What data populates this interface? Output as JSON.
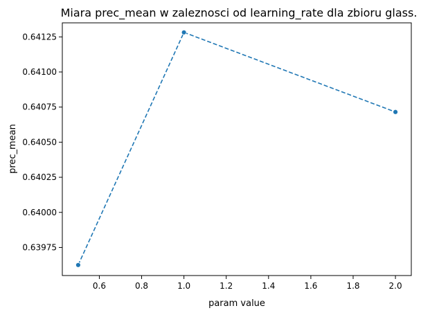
{
  "chart_data": {
    "type": "line",
    "title": "Miara prec_mean w zaleznosci od learning_rate dla zbioru glass.",
    "xlabel": "param value",
    "ylabel": "prec_mean",
    "x": [
      0.5,
      1.0,
      2.0
    ],
    "series": [
      {
        "values": [
          0.639625,
          0.641282,
          0.640715
        ],
        "color": "#1f77b4",
        "line_style": "dashed",
        "marker": "circle"
      }
    ],
    "xlim": [
      0.425,
      2.075
    ],
    "ylim": [
      0.63955,
      0.64135
    ],
    "xticks": [
      0.6,
      0.8,
      1.0,
      1.2,
      1.4,
      1.6,
      1.8,
      2.0
    ],
    "xtick_labels": [
      "0.6",
      "0.8",
      "1.0",
      "1.2",
      "1.4",
      "1.6",
      "1.8",
      "2.0"
    ],
    "yticks": [
      0.63975,
      0.64,
      0.64025,
      0.6405,
      0.64075,
      0.641,
      0.64125
    ],
    "ytick_labels": [
      "0.63975",
      "0.64000",
      "0.64025",
      "0.64050",
      "0.64075",
      "0.64100",
      "0.64125"
    ],
    "grid": false,
    "legend": false
  }
}
